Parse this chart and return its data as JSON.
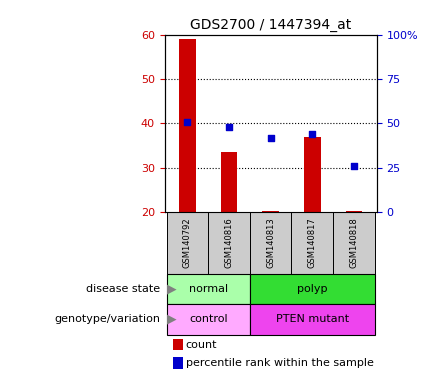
{
  "title": "GDS2700 / 1447394_at",
  "samples": [
    "GSM140792",
    "GSM140816",
    "GSM140813",
    "GSM140817",
    "GSM140818"
  ],
  "bar_values": [
    59,
    33.5,
    20.2,
    37,
    20.2
  ],
  "bar_baseline": 20,
  "percentile_values": [
    51,
    48,
    42,
    44,
    26
  ],
  "ylim_left": [
    20,
    60
  ],
  "ylim_right": [
    0,
    100
  ],
  "yticks_left": [
    20,
    30,
    40,
    50,
    60
  ],
  "yticks_right": [
    0,
    25,
    50,
    75,
    100
  ],
  "ytick_labels_right": [
    "0",
    "25",
    "50",
    "75",
    "100%"
  ],
  "bar_color": "#cc0000",
  "dot_color": "#0000cc",
  "disease_state": [
    [
      "normal",
      2
    ],
    [
      "polyp",
      3
    ]
  ],
  "disease_colors": [
    "#aaffaa",
    "#33dd33"
  ],
  "genotype": [
    [
      "control",
      2
    ],
    [
      "PTEN mutant",
      3
    ]
  ],
  "genotype_colors": [
    "#ffaaff",
    "#ee44ee"
  ],
  "legend_count": "count",
  "legend_percentile": "percentile rank within the sample",
  "annotation_label_disease": "disease state",
  "annotation_label_genotype": "genotype/variation",
  "ax_label_color_left": "#cc0000",
  "ax_label_color_right": "#0000cc",
  "sample_box_color": "#cccccc"
}
